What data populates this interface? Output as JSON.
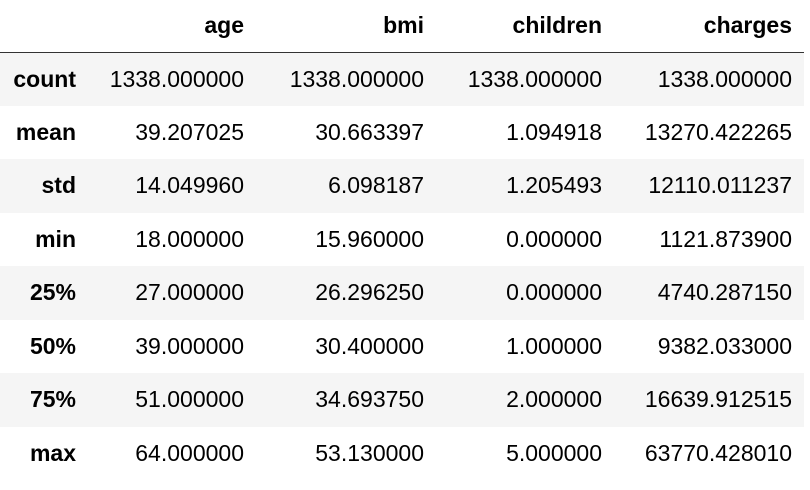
{
  "table": {
    "index_header": "",
    "columns": [
      "age",
      "bmi",
      "children",
      "charges"
    ],
    "rows": [
      {
        "label": "count",
        "values": [
          "1338.000000",
          "1338.000000",
          "1338.000000",
          "1338.000000"
        ]
      },
      {
        "label": "mean",
        "values": [
          "39.207025",
          "30.663397",
          "1.094918",
          "13270.422265"
        ]
      },
      {
        "label": "std",
        "values": [
          "14.049960",
          "6.098187",
          "1.205493",
          "12110.011237"
        ]
      },
      {
        "label": "min",
        "values": [
          "18.000000",
          "15.960000",
          "0.000000",
          "1121.873900"
        ]
      },
      {
        "label": "25%",
        "values": [
          "27.000000",
          "26.296250",
          "0.000000",
          "4740.287150"
        ]
      },
      {
        "label": "50%",
        "values": [
          "39.000000",
          "30.400000",
          "1.000000",
          "9382.033000"
        ]
      },
      {
        "label": "75%",
        "values": [
          "51.000000",
          "34.693750",
          "2.000000",
          "16639.912515"
        ]
      },
      {
        "label": "max",
        "values": [
          "64.000000",
          "53.130000",
          "5.000000",
          "63770.428010"
        ]
      }
    ]
  },
  "colors": {
    "stripe": "#f5f5f5",
    "header_rule": "#333333",
    "text": "#000000"
  }
}
